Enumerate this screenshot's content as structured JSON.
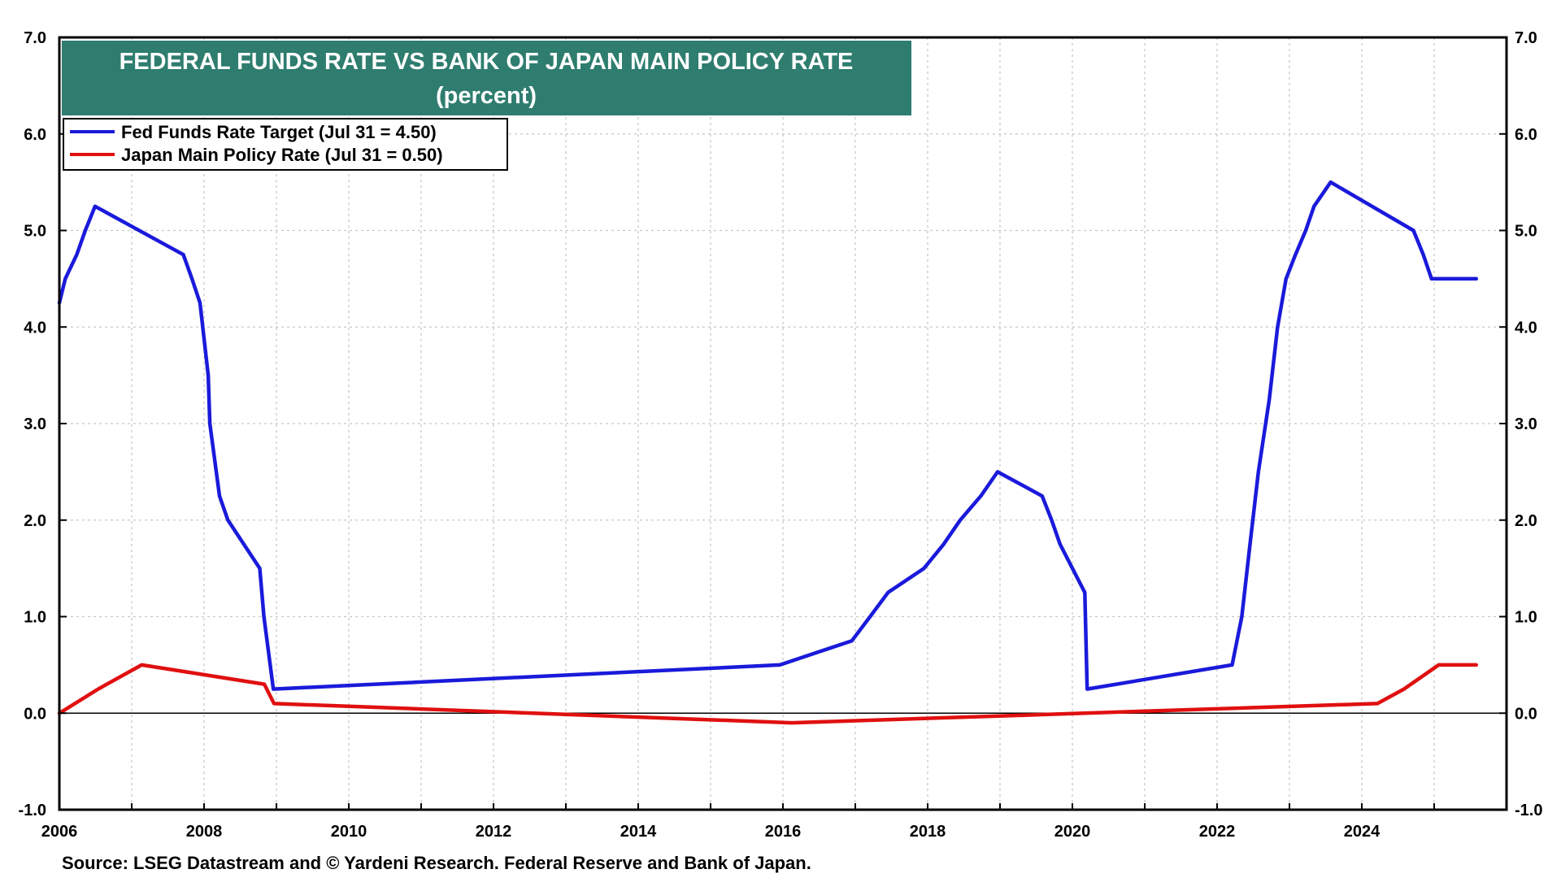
{
  "chart_data": {
    "type": "line",
    "title": "FEDERAL FUNDS RATE VS BANK OF JAPAN MAIN POLICY RATE",
    "subtitle": "(percent)",
    "source": "Source: LSEG Datastream and © Yardeni Research. Federal Reserve and Bank of Japan.",
    "xlim": [
      2006,
      2026
    ],
    "ylim": [
      -1.0,
      7.0
    ],
    "x_ticks": [
      2006,
      2008,
      2010,
      2012,
      2014,
      2016,
      2018,
      2020,
      2022,
      2024
    ],
    "x_tick_labels": [
      "2006",
      "2008",
      "2010",
      "2012",
      "2014",
      "2016",
      "2018",
      "2020",
      "2022",
      "2024"
    ],
    "y_ticks": [
      -1.0,
      0.0,
      1.0,
      2.0,
      3.0,
      4.0,
      5.0,
      6.0,
      7.0
    ],
    "y_tick_labels": [
      "-1.0",
      "0.0",
      "1.0",
      "2.0",
      "3.0",
      "4.0",
      "5.0",
      "6.0",
      "7.0"
    ],
    "grid": true,
    "legend_position": "top-left",
    "colors": {
      "title_bg": "#2e7d6f",
      "fed": "#1a1adb",
      "japan": "#e01010",
      "grid": "#c8c8c8"
    },
    "series": [
      {
        "name": "Fed Funds Rate Target (Jul 31 = 4.50)",
        "color": "#1a1adb",
        "points": [
          [
            "2006-01-01",
            4.25
          ],
          [
            "2006-01-31",
            4.5
          ],
          [
            "2006-03-28",
            4.75
          ],
          [
            "2006-05-10",
            5.0
          ],
          [
            "2006-06-29",
            5.25
          ],
          [
            "2007-09-18",
            4.75
          ],
          [
            "2007-10-31",
            4.5
          ],
          [
            "2007-12-11",
            4.25
          ],
          [
            "2008-01-22",
            3.5
          ],
          [
            "2008-01-30",
            3.0
          ],
          [
            "2008-03-18",
            2.25
          ],
          [
            "2008-04-30",
            2.0
          ],
          [
            "2008-10-08",
            1.5
          ],
          [
            "2008-10-29",
            1.0
          ],
          [
            "2008-12-16",
            0.25
          ],
          [
            "2015-12-16",
            0.5
          ],
          [
            "2016-12-14",
            0.75
          ],
          [
            "2017-03-15",
            1.0
          ],
          [
            "2017-06-14",
            1.25
          ],
          [
            "2017-12-13",
            1.5
          ],
          [
            "2018-03-21",
            1.75
          ],
          [
            "2018-06-13",
            2.0
          ],
          [
            "2018-09-26",
            2.25
          ],
          [
            "2018-12-19",
            2.5
          ],
          [
            "2019-07-31",
            2.25
          ],
          [
            "2019-09-18",
            2.0
          ],
          [
            "2019-10-30",
            1.75
          ],
          [
            "2020-03-03",
            1.25
          ],
          [
            "2020-03-15",
            0.25
          ],
          [
            "2022-03-16",
            0.5
          ],
          [
            "2022-05-04",
            1.0
          ],
          [
            "2022-06-15",
            1.75
          ],
          [
            "2022-07-27",
            2.5
          ],
          [
            "2022-09-21",
            3.25
          ],
          [
            "2022-11-02",
            4.0
          ],
          [
            "2022-12-14",
            4.5
          ],
          [
            "2023-02-01",
            4.75
          ],
          [
            "2023-03-22",
            5.0
          ],
          [
            "2023-05-03",
            5.25
          ],
          [
            "2023-07-26",
            5.5
          ],
          [
            "2024-09-18",
            5.0
          ],
          [
            "2024-11-07",
            4.75
          ],
          [
            "2024-12-18",
            4.5
          ],
          [
            "2025-07-31",
            4.5
          ]
        ]
      },
      {
        "name": "Japan Main Policy Rate (Jul 31 = 0.50)",
        "color": "#e01010",
        "points": [
          [
            "2006-01-01",
            0.0
          ],
          [
            "2006-07-14",
            0.25
          ],
          [
            "2007-02-21",
            0.5
          ],
          [
            "2008-10-31",
            0.3
          ],
          [
            "2008-12-19",
            0.1
          ],
          [
            "2016-02-16",
            -0.1
          ],
          [
            "2024-03-19",
            0.1
          ],
          [
            "2024-07-31",
            0.25
          ],
          [
            "2025-01-24",
            0.5
          ],
          [
            "2025-07-31",
            0.5
          ]
        ]
      }
    ]
  }
}
